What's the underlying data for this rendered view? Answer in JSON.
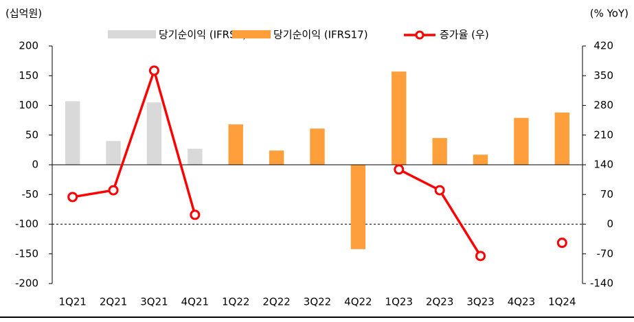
{
  "chart_data": {
    "type": "bar_line",
    "y_label": "(십억원)",
    "y2_label": "(% YoY)",
    "categories": [
      "1Q21",
      "2Q21",
      "3Q21",
      "4Q21",
      "1Q22",
      "2Q22",
      "3Q22",
      "4Q22",
      "1Q23",
      "2Q23",
      "3Q23",
      "4Q23",
      "1Q24"
    ],
    "series": [
      {
        "name": "당기순이익 (IFRS4)",
        "type": "bar",
        "color": "#d9d9d9",
        "values": [
          107,
          40,
          105,
          27,
          null,
          null,
          null,
          null,
          null,
          null,
          null,
          null,
          null
        ]
      },
      {
        "name": "당기순이익 (IFRS17)",
        "type": "bar",
        "color": "#ff9f3b",
        "values": [
          null,
          null,
          null,
          null,
          68,
          24,
          61,
          -142,
          157,
          45,
          17,
          79,
          88
        ]
      },
      {
        "name": "증가율 (우)",
        "type": "line",
        "axis": "y2",
        "color": "#ff0000",
        "values": [
          64,
          80,
          362,
          22,
          null,
          null,
          null,
          null,
          129,
          80,
          -75,
          null,
          -44
        ]
      }
    ],
    "ylim": [
      -200,
      200
    ],
    "yticks": [
      -200,
      -150,
      -100,
      -50,
      0,
      50,
      100,
      150,
      200
    ],
    "y2lim": [
      -140,
      420
    ],
    "y2ticks": [
      -140,
      -70,
      0,
      70,
      140,
      210,
      280,
      350,
      420
    ],
    "reference_lines": [
      {
        "axis": "y2",
        "value": 0,
        "dashed": true
      }
    ]
  }
}
